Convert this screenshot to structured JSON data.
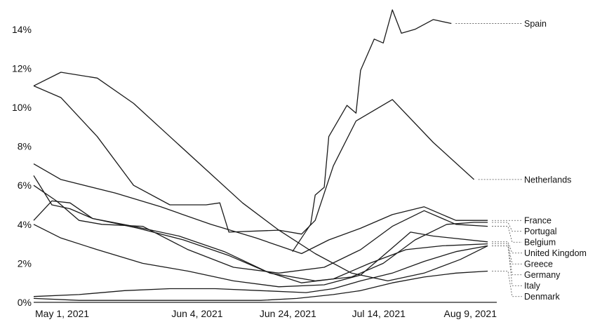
{
  "chart_data": {
    "type": "line",
    "title": "",
    "xlabel": "",
    "ylabel": "",
    "x_tick_labels": [
      {
        "label": "May 1, 2021",
        "date": "2021-05-01"
      },
      {
        "label": "Jun 4, 2021",
        "date": "2021-06-04"
      },
      {
        "label": "Jun 24, 2021",
        "date": "2021-06-24"
      },
      {
        "label": "Jul 14, 2021",
        "date": "2021-07-14"
      },
      {
        "label": "Aug 9, 2021",
        "date": "2021-08-09"
      }
    ],
    "xlim": [
      "2021-04-29",
      "2021-08-09"
    ],
    "y_ticks": [
      0,
      2,
      4,
      6,
      8,
      10,
      12,
      14
    ],
    "y_tick_labels": [
      "0%",
      "2%",
      "4%",
      "6%",
      "8%",
      "10%",
      "12%",
      "14%"
    ],
    "ylim": [
      0,
      15
    ],
    "grid": false,
    "legend": "right (labels at line ends)",
    "series": [
      {
        "name": "Spain",
        "points": [
          [
            "2021-06-25",
            2.6
          ],
          [
            "2021-06-29",
            4.0
          ],
          [
            "2021-06-30",
            5.5
          ],
          [
            "2021-07-02",
            5.9
          ],
          [
            "2021-07-03",
            8.5
          ],
          [
            "2021-07-07",
            10.1
          ],
          [
            "2021-07-09",
            9.7
          ],
          [
            "2021-07-10",
            11.9
          ],
          [
            "2021-07-13",
            13.5
          ],
          [
            "2021-07-15",
            13.3
          ],
          [
            "2021-07-17",
            15.0
          ],
          [
            "2021-07-19",
            13.8
          ],
          [
            "2021-07-22",
            14.0
          ],
          [
            "2021-07-26",
            14.5
          ],
          [
            "2021-07-30",
            14.3
          ]
        ]
      },
      {
        "name": "Netherlands",
        "points": [
          [
            "2021-04-29",
            11.1
          ],
          [
            "2021-05-05",
            10.5
          ],
          [
            "2021-05-13",
            8.5
          ],
          [
            "2021-05-21",
            6.0
          ],
          [
            "2021-05-29",
            5.0
          ],
          [
            "2021-06-06",
            5.0
          ],
          [
            "2021-06-09",
            5.1
          ],
          [
            "2021-06-11",
            3.6
          ],
          [
            "2021-06-22",
            3.7
          ],
          [
            "2021-06-27",
            3.5
          ],
          [
            "2021-06-30",
            4.2
          ],
          [
            "2021-07-04",
            7.0
          ],
          [
            "2021-07-09",
            9.3
          ],
          [
            "2021-07-17",
            10.4
          ],
          [
            "2021-07-26",
            8.2
          ],
          [
            "2021-08-04",
            6.3
          ]
        ]
      },
      {
        "name": "France",
        "points": [
          [
            "2021-04-29",
            7.1
          ],
          [
            "2021-05-05",
            6.3
          ],
          [
            "2021-05-17",
            5.6
          ],
          [
            "2021-05-27",
            4.9
          ],
          [
            "2021-06-07",
            4.0
          ],
          [
            "2021-06-17",
            3.3
          ],
          [
            "2021-06-27",
            2.5
          ],
          [
            "2021-07-03",
            3.2
          ],
          [
            "2021-07-10",
            3.8
          ],
          [
            "2021-07-17",
            4.5
          ],
          [
            "2021-07-24",
            4.9
          ],
          [
            "2021-07-31",
            4.2
          ],
          [
            "2021-08-07",
            4.2
          ]
        ]
      },
      {
        "name": "Portugal",
        "points": [
          [
            "2021-04-29",
            6.5
          ],
          [
            "2021-05-03",
            5.0
          ],
          [
            "2021-05-07",
            4.8
          ],
          [
            "2021-05-12",
            4.3
          ],
          [
            "2021-05-21",
            3.9
          ],
          [
            "2021-05-31",
            3.4
          ],
          [
            "2021-06-10",
            2.6
          ],
          [
            "2021-06-20",
            1.5
          ],
          [
            "2021-06-30",
            1.1
          ],
          [
            "2021-07-08",
            1.3
          ],
          [
            "2021-07-15",
            2.0
          ],
          [
            "2021-07-22",
            3.2
          ],
          [
            "2021-07-29",
            4.0
          ],
          [
            "2021-08-04",
            4.1
          ],
          [
            "2021-08-07",
            4.1
          ]
        ]
      },
      {
        "name": "Belgium",
        "points": [
          [
            "2021-04-29",
            6.0
          ],
          [
            "2021-05-04",
            5.2
          ],
          [
            "2021-05-09",
            4.2
          ],
          [
            "2021-05-14",
            4.0
          ],
          [
            "2021-05-23",
            3.9
          ],
          [
            "2021-06-02",
            2.7
          ],
          [
            "2021-06-12",
            1.8
          ],
          [
            "2021-06-22",
            1.5
          ],
          [
            "2021-07-02",
            1.8
          ],
          [
            "2021-07-10",
            2.7
          ],
          [
            "2021-07-17",
            3.9
          ],
          [
            "2021-07-24",
            4.7
          ],
          [
            "2021-07-31",
            4.0
          ],
          [
            "2021-08-07",
            3.9
          ]
        ]
      },
      {
        "name": "United Kingdom",
        "points": [
          [
            "2021-04-29",
            4.0
          ],
          [
            "2021-05-05",
            3.3
          ],
          [
            "2021-05-13",
            2.7
          ],
          [
            "2021-05-23",
            2.0
          ],
          [
            "2021-06-02",
            1.6
          ],
          [
            "2021-06-12",
            1.1
          ],
          [
            "2021-06-22",
            0.8
          ],
          [
            "2021-07-02",
            0.9
          ],
          [
            "2021-07-10",
            1.4
          ],
          [
            "2021-07-17",
            2.8
          ],
          [
            "2021-07-21",
            3.6
          ],
          [
            "2021-07-26",
            3.4
          ],
          [
            "2021-08-07",
            3.1
          ]
        ]
      },
      {
        "name": "Germany",
        "points": [
          [
            "2021-04-29",
            11.1
          ],
          [
            "2021-05-05",
            11.8
          ],
          [
            "2021-05-13",
            11.5
          ],
          [
            "2021-05-21",
            10.2
          ],
          [
            "2021-05-29",
            8.5
          ],
          [
            "2021-06-06",
            6.8
          ],
          [
            "2021-06-14",
            5.1
          ],
          [
            "2021-06-22",
            3.7
          ],
          [
            "2021-06-30",
            2.5
          ],
          [
            "2021-07-08",
            1.5
          ],
          [
            "2021-07-16",
            1.1
          ],
          [
            "2021-07-24",
            1.5
          ],
          [
            "2021-08-01",
            2.2
          ],
          [
            "2021-08-07",
            2.9
          ]
        ]
      },
      {
        "name": "Greece",
        "points": [
          [
            "2021-04-29",
            4.2
          ],
          [
            "2021-05-03",
            5.2
          ],
          [
            "2021-05-07",
            5.1
          ],
          [
            "2021-05-12",
            4.3
          ],
          [
            "2021-05-22",
            3.8
          ],
          [
            "2021-06-01",
            3.2
          ],
          [
            "2021-06-11",
            2.4
          ],
          [
            "2021-06-19",
            1.6
          ],
          [
            "2021-06-27",
            1.0
          ],
          [
            "2021-07-04",
            1.2
          ],
          [
            "2021-07-12",
            2.0
          ],
          [
            "2021-07-20",
            2.7
          ],
          [
            "2021-07-28",
            2.9
          ],
          [
            "2021-08-07",
            3.0
          ]
        ]
      },
      {
        "name": "Italy",
        "points": [
          [
            "2021-04-29",
            0.3
          ],
          [
            "2021-05-09",
            0.4
          ],
          [
            "2021-05-19",
            0.6
          ],
          [
            "2021-05-29",
            0.7
          ],
          [
            "2021-06-08",
            0.7
          ],
          [
            "2021-06-18",
            0.6
          ],
          [
            "2021-06-28",
            0.5
          ],
          [
            "2021-07-04",
            0.7
          ],
          [
            "2021-07-10",
            1.1
          ],
          [
            "2021-07-17",
            1.5
          ],
          [
            "2021-07-24",
            2.1
          ],
          [
            "2021-07-31",
            2.6
          ],
          [
            "2021-08-07",
            2.9
          ]
        ]
      },
      {
        "name": "Denmark",
        "points": [
          [
            "2021-04-29",
            0.2
          ],
          [
            "2021-05-09",
            0.1
          ],
          [
            "2021-05-19",
            0.1
          ],
          [
            "2021-05-29",
            0.1
          ],
          [
            "2021-06-08",
            0.1
          ],
          [
            "2021-06-18",
            0.1
          ],
          [
            "2021-06-26",
            0.2
          ],
          [
            "2021-07-04",
            0.4
          ],
          [
            "2021-07-10",
            0.6
          ],
          [
            "2021-07-17",
            1.0
          ],
          [
            "2021-07-24",
            1.3
          ],
          [
            "2021-07-31",
            1.5
          ],
          [
            "2021-08-07",
            1.6
          ]
        ]
      }
    ]
  }
}
